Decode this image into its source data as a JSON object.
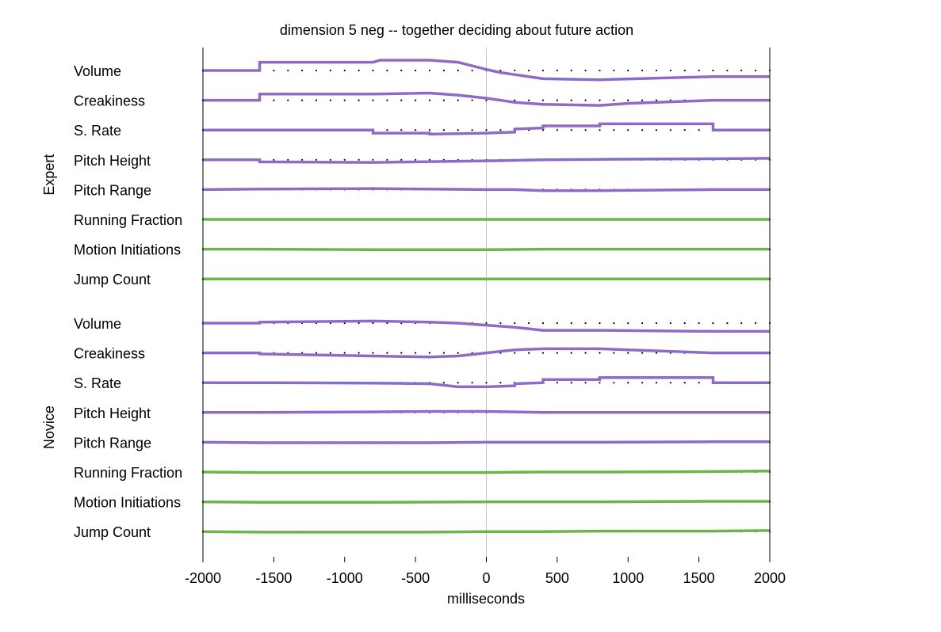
{
  "chart_data": {
    "type": "line",
    "title": "dimension 5 neg -- together deciding about future action",
    "xlabel": "milliseconds",
    "xlim": [
      -2000,
      2000
    ],
    "xticks": [
      -2000,
      -1500,
      -1000,
      -500,
      0,
      500,
      1000,
      1500,
      2000
    ],
    "grid": false,
    "reference_line_x": 0,
    "colors": {
      "prosody": "#8e6cc6",
      "motion": "#6db548",
      "baseline_dots": "#000000",
      "zero_line": "#c8c8c8"
    },
    "groups": [
      {
        "name": "Expert",
        "tracks": [
          {
            "label": "Volume",
            "kind": "prosody",
            "x": [
              -2000,
              -1600,
              -1600,
              -800,
              -750,
              -400,
              -200,
              0,
              100,
              200,
              400,
              800,
              1600,
              2000
            ],
            "y": [
              0,
              0,
              0.8,
              0.8,
              1.0,
              1.0,
              0.8,
              0.1,
              -0.2,
              -0.4,
              -0.8,
              -0.9,
              -0.6,
              -0.6
            ]
          },
          {
            "label": "Creakiness",
            "kind": "prosody",
            "x": [
              -2000,
              -1600,
              -1600,
              -800,
              -400,
              -200,
              0,
              200,
              400,
              800,
              1000,
              1600,
              2000
            ],
            "y": [
              0,
              0,
              0.6,
              0.6,
              0.7,
              0.5,
              0.2,
              -0.2,
              -0.4,
              -0.5,
              -0.3,
              0.0,
              0.0
            ]
          },
          {
            "label": "S. Rate",
            "kind": "prosody",
            "x": [
              -2000,
              -1600,
              -800,
              -800,
              -400,
              -400,
              0,
              200,
              200,
              400,
              400,
              800,
              800,
              1600,
              1600,
              2000
            ],
            "y": [
              0,
              0,
              0,
              -0.3,
              -0.3,
              -0.4,
              -0.3,
              -0.2,
              0.1,
              0.2,
              0.4,
              0.4,
              0.6,
              0.6,
              0.0,
              0.0
            ]
          },
          {
            "label": "Pitch Height",
            "kind": "prosody",
            "x": [
              -2000,
              -1600,
              -1600,
              -800,
              0,
              400,
              800,
              1600,
              2000
            ],
            "y": [
              0,
              0,
              -0.2,
              -0.25,
              -0.1,
              0.0,
              0.05,
              0.1,
              0.15
            ]
          },
          {
            "label": "Pitch Range",
            "kind": "prosody",
            "x": [
              -2000,
              -1600,
              -800,
              -400,
              0,
              200,
              400,
              800,
              1600,
              2000
            ],
            "y": [
              0,
              0.05,
              0.1,
              0.05,
              0.0,
              0.0,
              -0.1,
              -0.1,
              0.0,
              0.0
            ]
          },
          {
            "label": "Running Fraction",
            "kind": "motion",
            "x": [
              -2000,
              -1600,
              -800,
              0,
              400,
              800,
              1600,
              2000
            ],
            "y": [
              0,
              0,
              0,
              0,
              0,
              0,
              0,
              0
            ]
          },
          {
            "label": "Motion Initiations",
            "kind": "motion",
            "x": [
              -2000,
              -1600,
              -800,
              -400,
              0,
              400,
              800,
              1600,
              2000
            ],
            "y": [
              0,
              0,
              -0.05,
              -0.05,
              -0.05,
              0,
              0,
              0,
              0
            ]
          },
          {
            "label": "Jump Count",
            "kind": "motion",
            "x": [
              -2000,
              -1600,
              -800,
              0,
              400,
              800,
              1600,
              2000
            ],
            "y": [
              0,
              0,
              0,
              0,
              0,
              0,
              0,
              0
            ]
          }
        ]
      },
      {
        "name": "Novice",
        "tracks": [
          {
            "label": "Volume",
            "kind": "prosody",
            "x": [
              -2000,
              -1600,
              -1600,
              -800,
              -400,
              -200,
              0,
              200,
              400,
              800,
              1600,
              2000
            ],
            "y": [
              0,
              0,
              0.1,
              0.2,
              0.1,
              0.0,
              -0.2,
              -0.4,
              -0.7,
              -0.7,
              -0.8,
              -0.8
            ]
          },
          {
            "label": "Creakiness",
            "kind": "prosody",
            "x": [
              -2000,
              -1600,
              -1600,
              -800,
              -400,
              -200,
              0,
              200,
              400,
              800,
              1600,
              2000
            ],
            "y": [
              0,
              0,
              -0.1,
              -0.3,
              -0.4,
              -0.3,
              0.0,
              0.3,
              0.4,
              0.4,
              0.0,
              0.0
            ]
          },
          {
            "label": "S. Rate",
            "kind": "prosody",
            "x": [
              -2000,
              -1600,
              -800,
              -400,
              -200,
              0,
              200,
              200,
              400,
              400,
              800,
              800,
              1600,
              1600,
              2000
            ],
            "y": [
              0,
              0,
              -0.05,
              -0.1,
              -0.4,
              -0.4,
              -0.3,
              -0.1,
              0.0,
              0.3,
              0.3,
              0.5,
              0.5,
              0.0,
              0.0
            ]
          },
          {
            "label": "Pitch Height",
            "kind": "prosody",
            "x": [
              -2000,
              -1600,
              -800,
              -400,
              0,
              200,
              400,
              800,
              1600,
              2000
            ],
            "y": [
              0,
              0,
              0.05,
              0.1,
              0.1,
              0.05,
              0.0,
              0.0,
              0.0,
              0.0
            ]
          },
          {
            "label": "Pitch Range",
            "kind": "prosody",
            "x": [
              -2000,
              -1600,
              -800,
              -400,
              0,
              200,
              400,
              800,
              1600,
              2000
            ],
            "y": [
              0,
              -0.05,
              -0.05,
              -0.05,
              0,
              0,
              0,
              0,
              0.05,
              0.05
            ]
          },
          {
            "label": "Running Fraction",
            "kind": "motion",
            "x": [
              -2000,
              -1600,
              -800,
              0,
              400,
              800,
              1600,
              2000
            ],
            "y": [
              0,
              -0.05,
              -0.05,
              -0.05,
              0,
              0,
              0.05,
              0.1
            ]
          },
          {
            "label": "Motion Initiations",
            "kind": "motion",
            "x": [
              -2000,
              -1600,
              -800,
              0,
              400,
              800,
              1600,
              2000
            ],
            "y": [
              0,
              -0.05,
              -0.05,
              0,
              0,
              0,
              0.05,
              0.05
            ]
          },
          {
            "label": "Jump Count",
            "kind": "motion",
            "x": [
              -2000,
              -1600,
              -800,
              -400,
              0,
              400,
              800,
              1600,
              2000
            ],
            "y": [
              0,
              -0.05,
              -0.05,
              -0.05,
              0,
              0,
              0.05,
              0.05,
              0.1
            ]
          }
        ]
      }
    ]
  }
}
